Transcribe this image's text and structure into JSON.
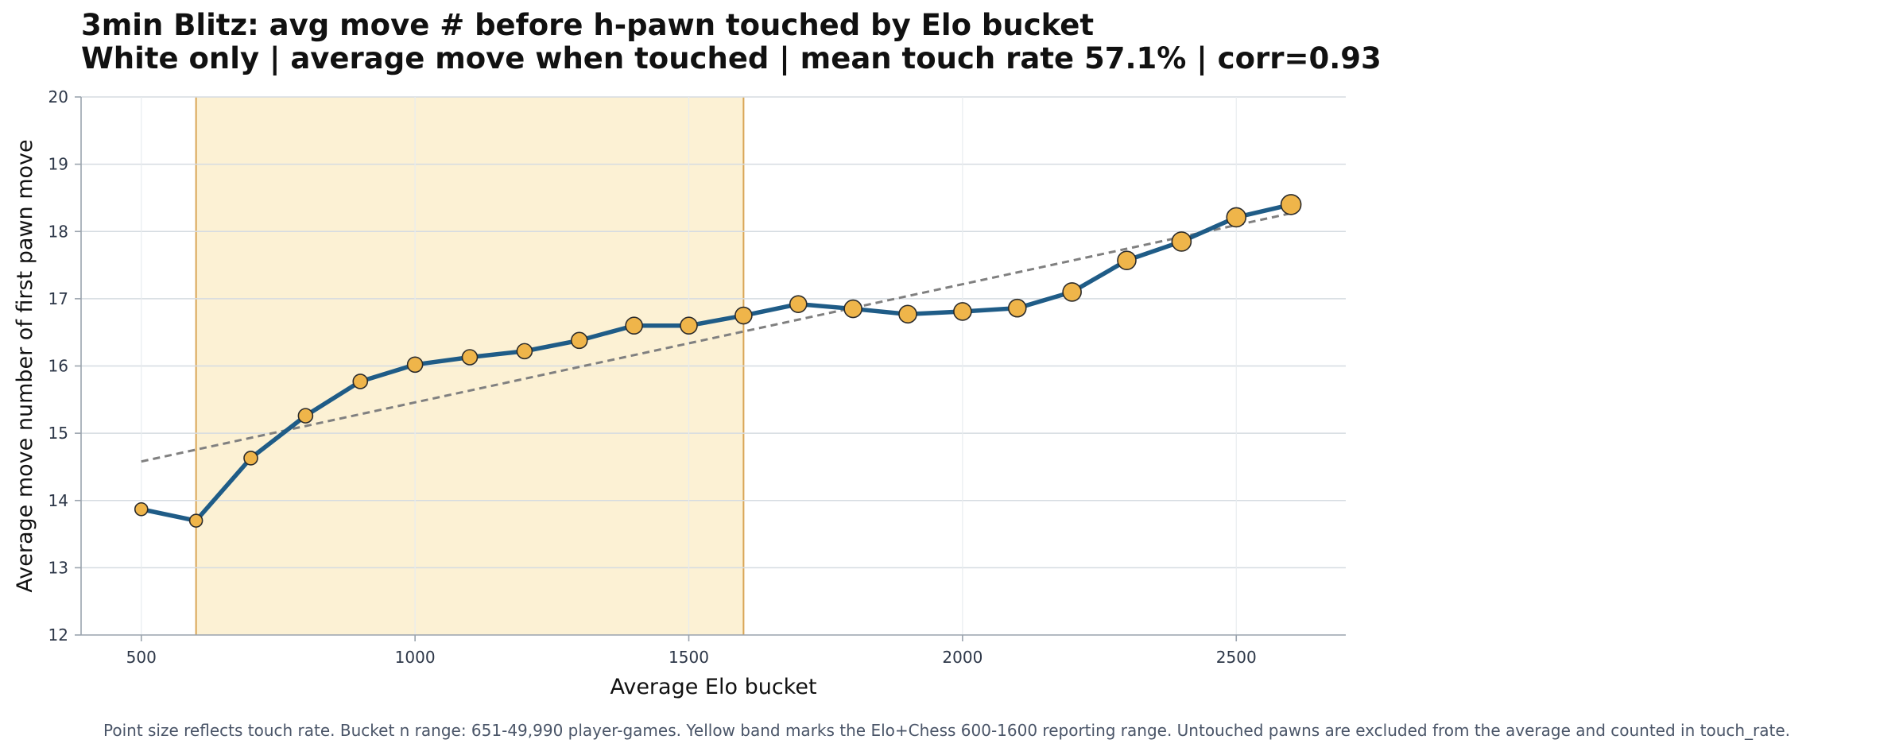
{
  "chart_data": {
    "type": "line",
    "title": "3min Blitz: avg move # before h-pawn touched by Elo bucket",
    "subtitle": "White only | average move when touched | mean touch rate 57.1% | corr=0.93",
    "xlabel": "Average Elo bucket",
    "ylabel": "Average move number of first pawn move",
    "xlim": [
      390,
      2700
    ],
    "ylim": [
      12,
      20
    ],
    "xticks": [
      500,
      1000,
      1500,
      2000,
      2500
    ],
    "yticks": [
      12,
      13,
      14,
      15,
      16,
      17,
      18,
      19,
      20
    ],
    "grid": true,
    "x": [
      500,
      600,
      700,
      800,
      900,
      1000,
      1100,
      1200,
      1300,
      1400,
      1500,
      1600,
      1700,
      1800,
      1900,
      2000,
      2100,
      2200,
      2300,
      2400,
      2500,
      2600
    ],
    "series": [
      {
        "values": [
          13.87,
          13.7,
          14.63,
          15.26,
          15.77,
          16.02,
          16.13,
          16.22,
          16.38,
          16.6,
          16.6,
          16.75,
          16.92,
          16.85,
          16.77,
          16.81,
          16.86,
          17.1,
          17.57,
          17.85,
          18.21,
          18.4
        ],
        "touch_rate_relative": [
          0.3,
          0.3,
          0.35,
          0.4,
          0.4,
          0.45,
          0.45,
          0.45,
          0.5,
          0.55,
          0.55,
          0.55,
          0.55,
          0.6,
          0.6,
          0.6,
          0.6,
          0.65,
          0.65,
          0.7,
          0.7,
          0.75
        ]
      }
    ],
    "trendline": {
      "from": [
        500,
        14.58
      ],
      "to": [
        2600,
        18.27
      ]
    },
    "band": {
      "x": [
        600,
        1600
      ]
    },
    "colors": {
      "line": "#1f5c87",
      "marker_fill": "#efb54a",
      "marker_edge": "#2b2b2b",
      "trend": "#808080",
      "band_fill": "#fcf1d4",
      "band_edge": "#d9a556",
      "grid": "#d5dbe1",
      "tick_text": "#2d3748"
    }
  },
  "footnote": "Point size reflects touch rate. Bucket n range: 651-49,990 player-games. Yellow band marks the Elo+Chess 600-1600 reporting range. Untouched pawns are excluded from the average and counted in touch_rate."
}
